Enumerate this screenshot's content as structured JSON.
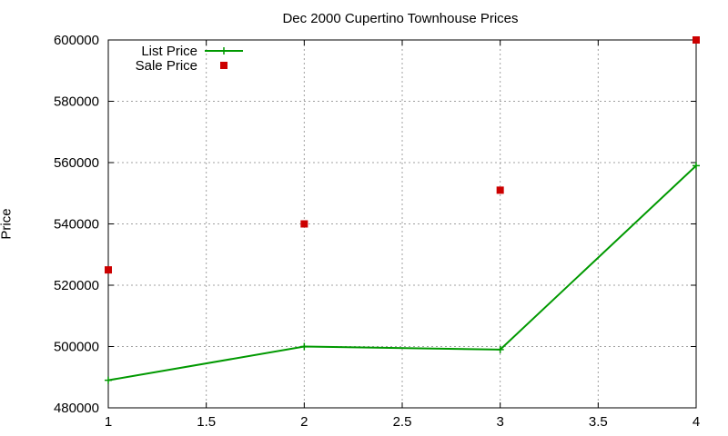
{
  "chart_data": {
    "type": "line",
    "title": "Dec 2000 Cupertino Townhouse Prices",
    "xlabel": "",
    "ylabel": "Price",
    "xlim": [
      1,
      4
    ],
    "ylim": [
      480000,
      600000
    ],
    "xticks": [
      1,
      1.5,
      2,
      2.5,
      3,
      3.5,
      4
    ],
    "yticks": [
      480000,
      500000,
      520000,
      540000,
      560000,
      580000,
      600000
    ],
    "grid": true,
    "legend_position": "top-left",
    "series": [
      {
        "name": "List Price",
        "style": "line-points",
        "color": "#009900",
        "x": [
          1,
          2,
          3,
          4
        ],
        "y": [
          489000,
          500000,
          499000,
          559000
        ]
      },
      {
        "name": "Sale Price",
        "style": "points",
        "color": "#cc0000",
        "x": [
          1,
          2,
          3,
          4
        ],
        "y": [
          525000,
          540000,
          551000,
          600000
        ]
      }
    ]
  }
}
